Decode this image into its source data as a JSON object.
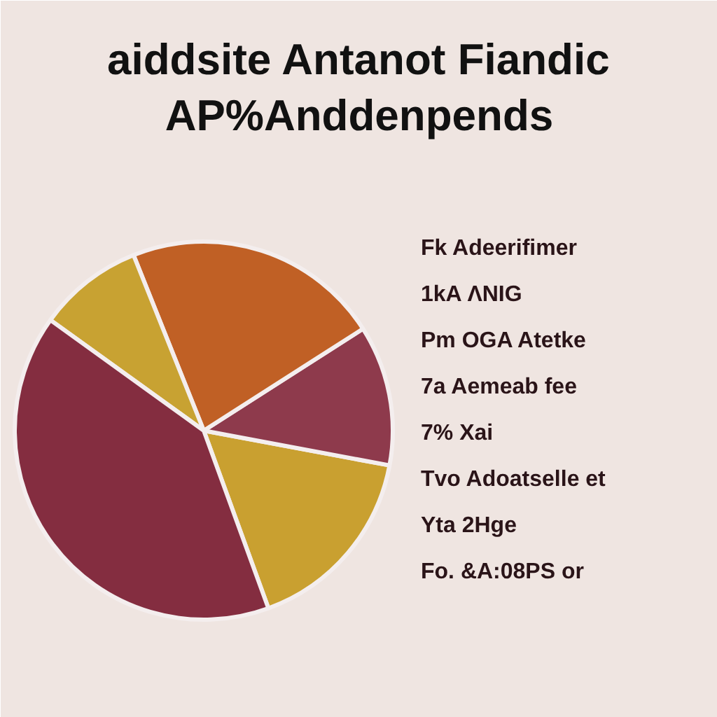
{
  "chart_data": {
    "type": "pie",
    "title": "aiddsite Antanot Fiandic",
    "subtitle": "AP%Anddenpends",
    "categories": [
      null,
      null,
      null,
      null,
      null
    ],
    "values": [
      16.5,
      12,
      22,
      9,
      40.5
    ],
    "colors": [
      "#c9a030",
      "#8e3a4c",
      "#c06025",
      "#c8a232",
      "#842d40"
    ],
    "annotations": [
      "Fk Adeerifimer",
      "1kA ΛNIG",
      "Pm OGA Atetke",
      "7a Aemeab fee",
      "7% Xai",
      "Tvo Adoatselle et",
      "Yta 2Hge",
      "Fo. &A:08PS or"
    ]
  }
}
